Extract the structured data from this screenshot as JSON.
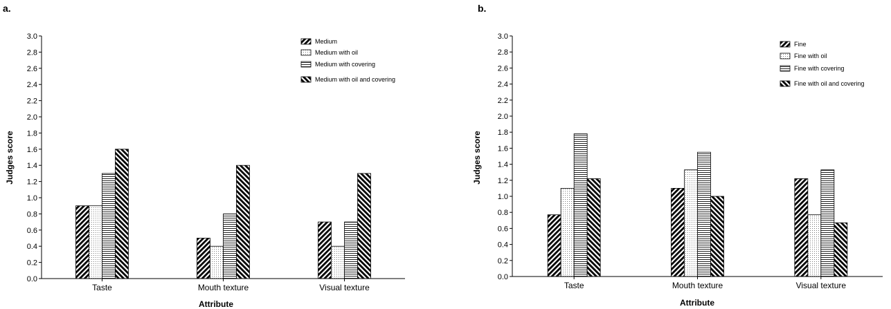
{
  "chart_data": [
    {
      "type": "bar",
      "panel_label": "a.",
      "xlabel": "Attribute",
      "ylabel": "Judges score",
      "ylim": [
        0,
        3.0
      ],
      "yticks": [
        "0.0",
        "0.2",
        "0.4",
        "0.6",
        "0.8",
        "1.0",
        "1.2",
        "1.4",
        "1.6",
        "1.8",
        "2.0",
        "2.2",
        "2.4",
        "2.6",
        "2.8",
        "3.0"
      ],
      "categories": [
        "Taste",
        "Mouth texture",
        "Visual texture"
      ],
      "grid": false,
      "legend_position": "top-right",
      "series": [
        {
          "name": "Medium",
          "pattern": "diag-right-dense",
          "values": [
            0.9,
            0.5,
            0.7
          ]
        },
        {
          "name": "Medium with oil",
          "pattern": "dots",
          "values": [
            0.9,
            0.4,
            0.4
          ]
        },
        {
          "name": "Medium with covering",
          "pattern": "horizontal",
          "values": [
            1.3,
            0.8,
            0.7
          ]
        },
        {
          "name": "Medium with oil and covering",
          "pattern": "diag-left-dense",
          "values": [
            1.6,
            1.4,
            1.3
          ]
        }
      ]
    },
    {
      "type": "bar",
      "panel_label": "b.",
      "xlabel": "Attribute",
      "ylabel": "Judges score",
      "ylim": [
        0,
        3.0
      ],
      "yticks": [
        "0.0",
        "0.2",
        "0.4",
        "0.6",
        "0.8",
        "1.0",
        "1.2",
        "1.4",
        "1.6",
        "1.8",
        "2.0",
        "2.2",
        "2.4",
        "2.6",
        "2.8",
        "3.0"
      ],
      "categories": [
        "Taste",
        "Mouth texture",
        "Visual texture"
      ],
      "grid": false,
      "legend_position": "top-right",
      "series": [
        {
          "name": "Fine",
          "pattern": "diag-right-dense",
          "values": [
            0.77,
            1.1,
            1.22
          ]
        },
        {
          "name": "Fine with oil",
          "pattern": "dots",
          "values": [
            1.1,
            1.33,
            0.77
          ]
        },
        {
          "name": "Fine with covering",
          "pattern": "horizontal",
          "values": [
            1.78,
            1.55,
            1.33
          ]
        },
        {
          "name": "Fine with oil and covering",
          "pattern": "diag-left-dense",
          "values": [
            1.22,
            1.0,
            0.67
          ]
        }
      ]
    }
  ]
}
